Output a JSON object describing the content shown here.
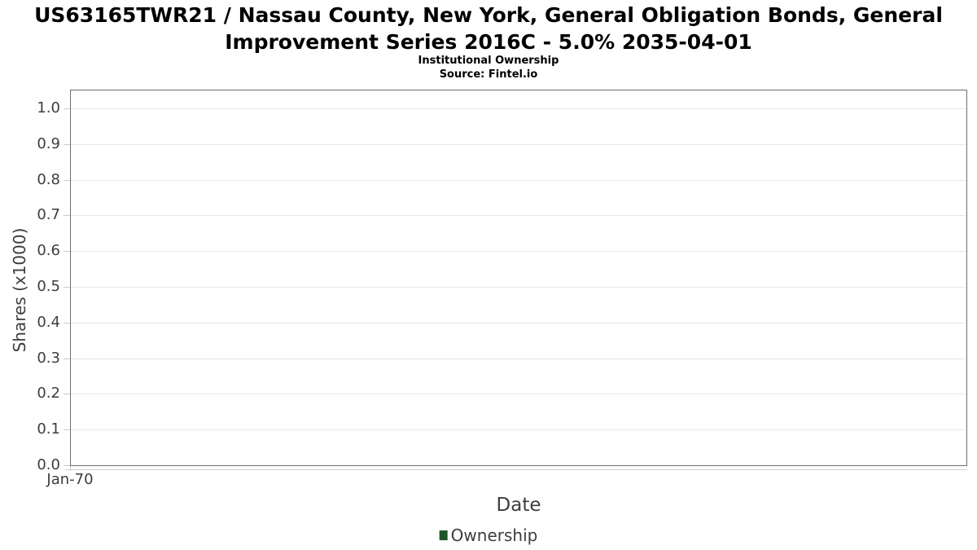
{
  "chart": {
    "title_line1": "US63165TWR21 / Nassau County, New York, General Obligation Bonds, General",
    "title_line2": "Improvement Series 2016C - 5.0% 2035-04-01",
    "subtitle": "Institutional Ownership",
    "source": "Source: Fintel.io",
    "xlabel": "Date",
    "ylabel": "Shares (x1000)",
    "legend": {
      "label": "Ownership",
      "marker_color": "#1d5628"
    },
    "colors": {
      "series_green": "#1d5628",
      "axis_border": "#6e6e6e",
      "gridline": "#e7e7e7",
      "tick": "#cbcbcb",
      "axis_text": "#3d3d3d",
      "title_text": "#000000"
    }
  },
  "chart_data": {
    "type": "bar",
    "title": "US63165TWR21 / Nassau County, New York, General Obligation Bonds, General Improvement Series 2016C - 5.0% 2035-04-01",
    "subtitle": "Institutional Ownership",
    "source": "Source: Fintel.io",
    "xlabel": "Date",
    "ylabel": "Shares (x1000)",
    "categories": [
      "Jan-70"
    ],
    "series": [
      {
        "name": "Ownership",
        "color": "#1d5628",
        "values": []
      }
    ],
    "y_ticks": [
      "0.0",
      "0.1",
      "0.2",
      "0.3",
      "0.4",
      "0.5",
      "0.6",
      "0.7",
      "0.8",
      "0.9",
      "1.0"
    ],
    "ylim": [
      0,
      1.05
    ],
    "grid": "horizontal-light",
    "legend_position": "bottom-center",
    "plot_is_empty": true
  }
}
